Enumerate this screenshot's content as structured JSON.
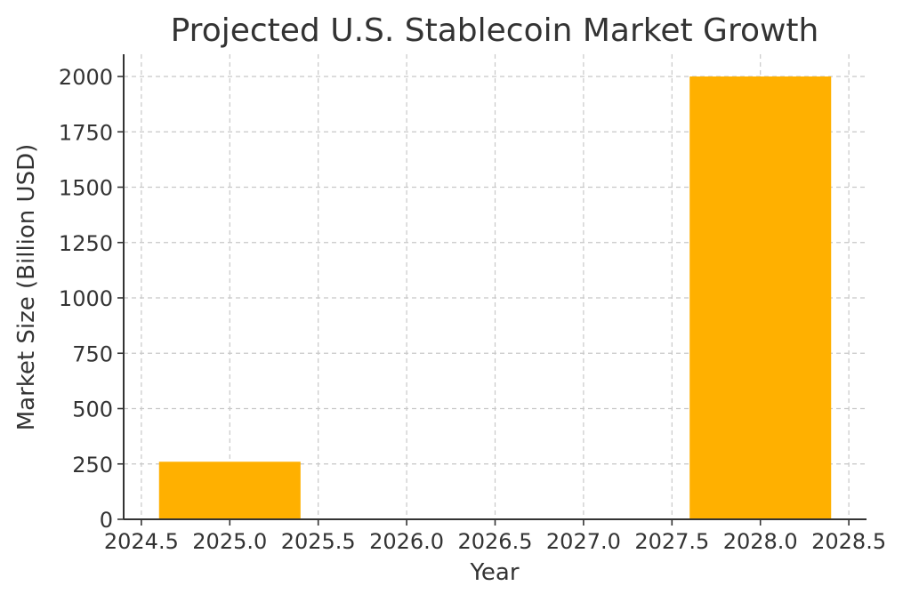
{
  "chart_data": {
    "type": "bar",
    "title": "Projected U.S. Stablecoin Market Growth",
    "xlabel": "Year",
    "ylabel": "Market Size (Billion USD)",
    "x": [
      2025,
      2028
    ],
    "values": [
      260,
      2000
    ],
    "bar_width": 0.8,
    "xlim": [
      2024.4,
      2028.6
    ],
    "ylim": [
      0,
      2100
    ],
    "xticks": [
      2024.5,
      2025.0,
      2025.5,
      2026.0,
      2026.5,
      2027.0,
      2027.5,
      2028.0,
      2028.5
    ],
    "xtick_labels": [
      "2024.5",
      "2025.0",
      "2025.5",
      "2026.0",
      "2026.5",
      "2027.0",
      "2027.5",
      "2028.0",
      "2028.5"
    ],
    "yticks": [
      0,
      250,
      500,
      750,
      1000,
      1250,
      1500,
      1750,
      2000
    ],
    "ytick_labels": [
      "0",
      "250",
      "500",
      "750",
      "1000",
      "1250",
      "1500",
      "1750",
      "2000"
    ],
    "grid": true,
    "bar_color": "#FFB000"
  }
}
